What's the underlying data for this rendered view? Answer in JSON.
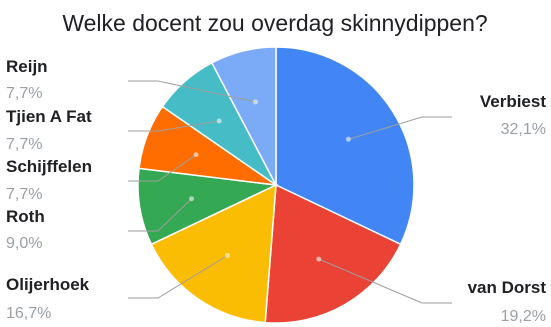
{
  "chart_data": {
    "type": "pie",
    "title": "Welke docent zou overdag skinnydippen?",
    "slices": [
      {
        "name": "Verbiest",
        "value": 32.1,
        "label": "32,1%",
        "color": "#4285f4"
      },
      {
        "name": "van Dorst",
        "value": 19.2,
        "label": "19,2%",
        "color": "#ea4335"
      },
      {
        "name": "Olijerhoek",
        "value": 16.7,
        "label": "16,7%",
        "color": "#fbbc04"
      },
      {
        "name": "Roth",
        "value": 9.0,
        "label": "9,0%",
        "color": "#34a853"
      },
      {
        "name": "Schijffelen",
        "value": 7.7,
        "label": "7,7%",
        "color": "#ff6d01"
      },
      {
        "name": "Tjien A Fat",
        "value": 7.7,
        "label": "7,7%",
        "color": "#46bdc6"
      },
      {
        "name": "Reijn",
        "value": 7.7,
        "label": "7,7%",
        "color": "#7baaf7"
      }
    ],
    "legend": "none"
  }
}
